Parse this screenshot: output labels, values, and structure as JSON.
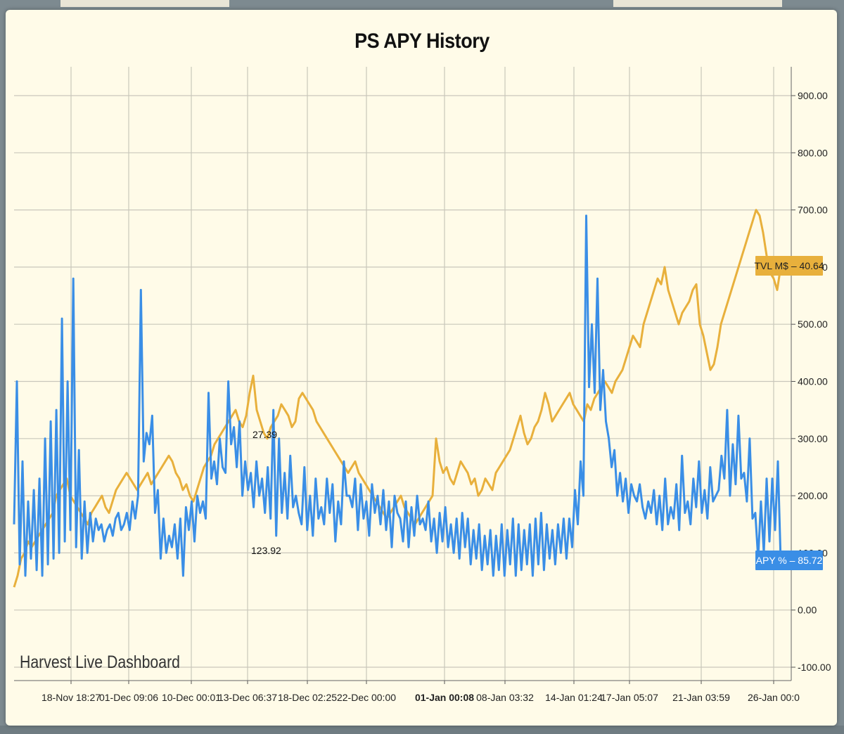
{
  "chart_data": {
    "type": "line",
    "title": "PS APY History",
    "watermark": "Harvest Live Dashboard",
    "x_ticks": [
      "18-Nov 18:27",
      "01-Dec 09:06",
      "10-Dec 00:01",
      "13-Dec 06:37",
      "18-Dec 02:25",
      "22-Dec 00:00",
      "01-Jan 00:08",
      "08-Jan 03:32",
      "14-Jan 01:24",
      "17-Jan 05:07",
      "21-Jan 03:59",
      "26-Jan 00:0"
    ],
    "y_ticks": [
      "900.00",
      "800.00",
      "700.00",
      "600.00",
      "500.00",
      "400.00",
      "300.00",
      "200.00",
      "100.00",
      "0.00",
      "-100.00"
    ],
    "ylim": [
      -100,
      900
    ],
    "grid": true,
    "series": [
      {
        "name": "APY %",
        "color": "#3a8ee6",
        "last_value": "85.72",
        "values": [
          150,
          400,
          80,
          260,
          60,
          190,
          90,
          210,
          70,
          230,
          60,
          300,
          80,
          330,
          90,
          350,
          100,
          510,
          120,
          400,
          140,
          580,
          110,
          280,
          90,
          190,
          100,
          170,
          120,
          160,
          140,
          150,
          120,
          140,
          150,
          130,
          160,
          170,
          140,
          150,
          170,
          140,
          190,
          160,
          200,
          560,
          260,
          310,
          290,
          340,
          170,
          210,
          90,
          160,
          100,
          130,
          110,
          150,
          90,
          160,
          60,
          180,
          140,
          190,
          120,
          200,
          170,
          190,
          160,
          380,
          230,
          260,
          220,
          300,
          250,
          240,
          400,
          290,
          320,
          250,
          330,
          200,
          260,
          210,
          240,
          180,
          260,
          200,
          230,
          170,
          250,
          160,
          350,
          130,
          300,
          170,
          240,
          160,
          270,
          180,
          200,
          170,
          150,
          250,
          140,
          200,
          130,
          230,
          160,
          180,
          150,
          230,
          170,
          220,
          120,
          190,
          150,
          260,
          200,
          200,
          180,
          230,
          140,
          220,
          160,
          190,
          130,
          220,
          170,
          200,
          150,
          210,
          140,
          190,
          110,
          200,
          170,
          160,
          120,
          190,
          110,
          180,
          130,
          200,
          150,
          160,
          140,
          190,
          120,
          160,
          100,
          170,
          120,
          180,
          110,
          150,
          100,
          160,
          90,
          170,
          110,
          160,
          80,
          140,
          90,
          150,
          70,
          130,
          80,
          140,
          60,
          130,
          70,
          150,
          60,
          140,
          80,
          160,
          60,
          150,
          70,
          140,
          80,
          150,
          60,
          160,
          80,
          170,
          70,
          150,
          90,
          140,
          80,
          150,
          100,
          160,
          90,
          160,
          110,
          210,
          150,
          260,
          200,
          690,
          390,
          500,
          380,
          580,
          350,
          420,
          330,
          300,
          250,
          280,
          200,
          240,
          190,
          230,
          170,
          220,
          200,
          190,
          220,
          180,
          160,
          190,
          170,
          210,
          150,
          200,
          140,
          230,
          150,
          180,
          160,
          220,
          140,
          270,
          170,
          190,
          150,
          230,
          180,
          260,
          170,
          210,
          160,
          250,
          190,
          200,
          210,
          270,
          230,
          350,
          200,
          290,
          220,
          340,
          230,
          240,
          190,
          300,
          160,
          170,
          90,
          190,
          100,
          230,
          120,
          230,
          140,
          260,
          85
        ]
      },
      {
        "name": "TVL M$",
        "color": "#e8b03c",
        "last_value": "40.64",
        "values": [
          40,
          60,
          90,
          100,
          120,
          110,
          120,
          130,
          140,
          150,
          160,
          170,
          200,
          210,
          220,
          230,
          200,
          190,
          180,
          170,
          160,
          150,
          170,
          180,
          190,
          200,
          180,
          170,
          190,
          210,
          220,
          230,
          240,
          230,
          220,
          210,
          220,
          230,
          240,
          220,
          230,
          240,
          250,
          260,
          270,
          260,
          240,
          230,
          210,
          220,
          200,
          190,
          210,
          230,
          250,
          260,
          270,
          290,
          300,
          310,
          320,
          330,
          340,
          350,
          330,
          320,
          340,
          380,
          410,
          350,
          330,
          310,
          300,
          320,
          330,
          340,
          360,
          350,
          340,
          320,
          330,
          370,
          380,
          370,
          360,
          350,
          330,
          320,
          310,
          300,
          290,
          280,
          270,
          260,
          250,
          240,
          250,
          260,
          240,
          230,
          220,
          210,
          200,
          190,
          180,
          170,
          160,
          170,
          180,
          190,
          200,
          180,
          170,
          160,
          150,
          160,
          170,
          180,
          190,
          200,
          300,
          260,
          240,
          250,
          230,
          220,
          240,
          260,
          250,
          240,
          220,
          230,
          200,
          210,
          230,
          220,
          210,
          240,
          250,
          260,
          270,
          280,
          300,
          320,
          340,
          310,
          290,
          300,
          320,
          330,
          350,
          380,
          360,
          330,
          340,
          350,
          360,
          370,
          380,
          360,
          350,
          340,
          330,
          360,
          350,
          370,
          380,
          390,
          400,
          390,
          380,
          400,
          410,
          420,
          440,
          460,
          480,
          470,
          460,
          500,
          520,
          540,
          560,
          580,
          570,
          600,
          560,
          540,
          520,
          500,
          520,
          530,
          540,
          560,
          570,
          500,
          480,
          450,
          420,
          430,
          460,
          500,
          520,
          540,
          560,
          580,
          600,
          620,
          640,
          660,
          680,
          700,
          690,
          660,
          620,
          590,
          580,
          560,
          600
        ]
      }
    ],
    "annotations": [
      "27.39",
      "123.92"
    ]
  }
}
